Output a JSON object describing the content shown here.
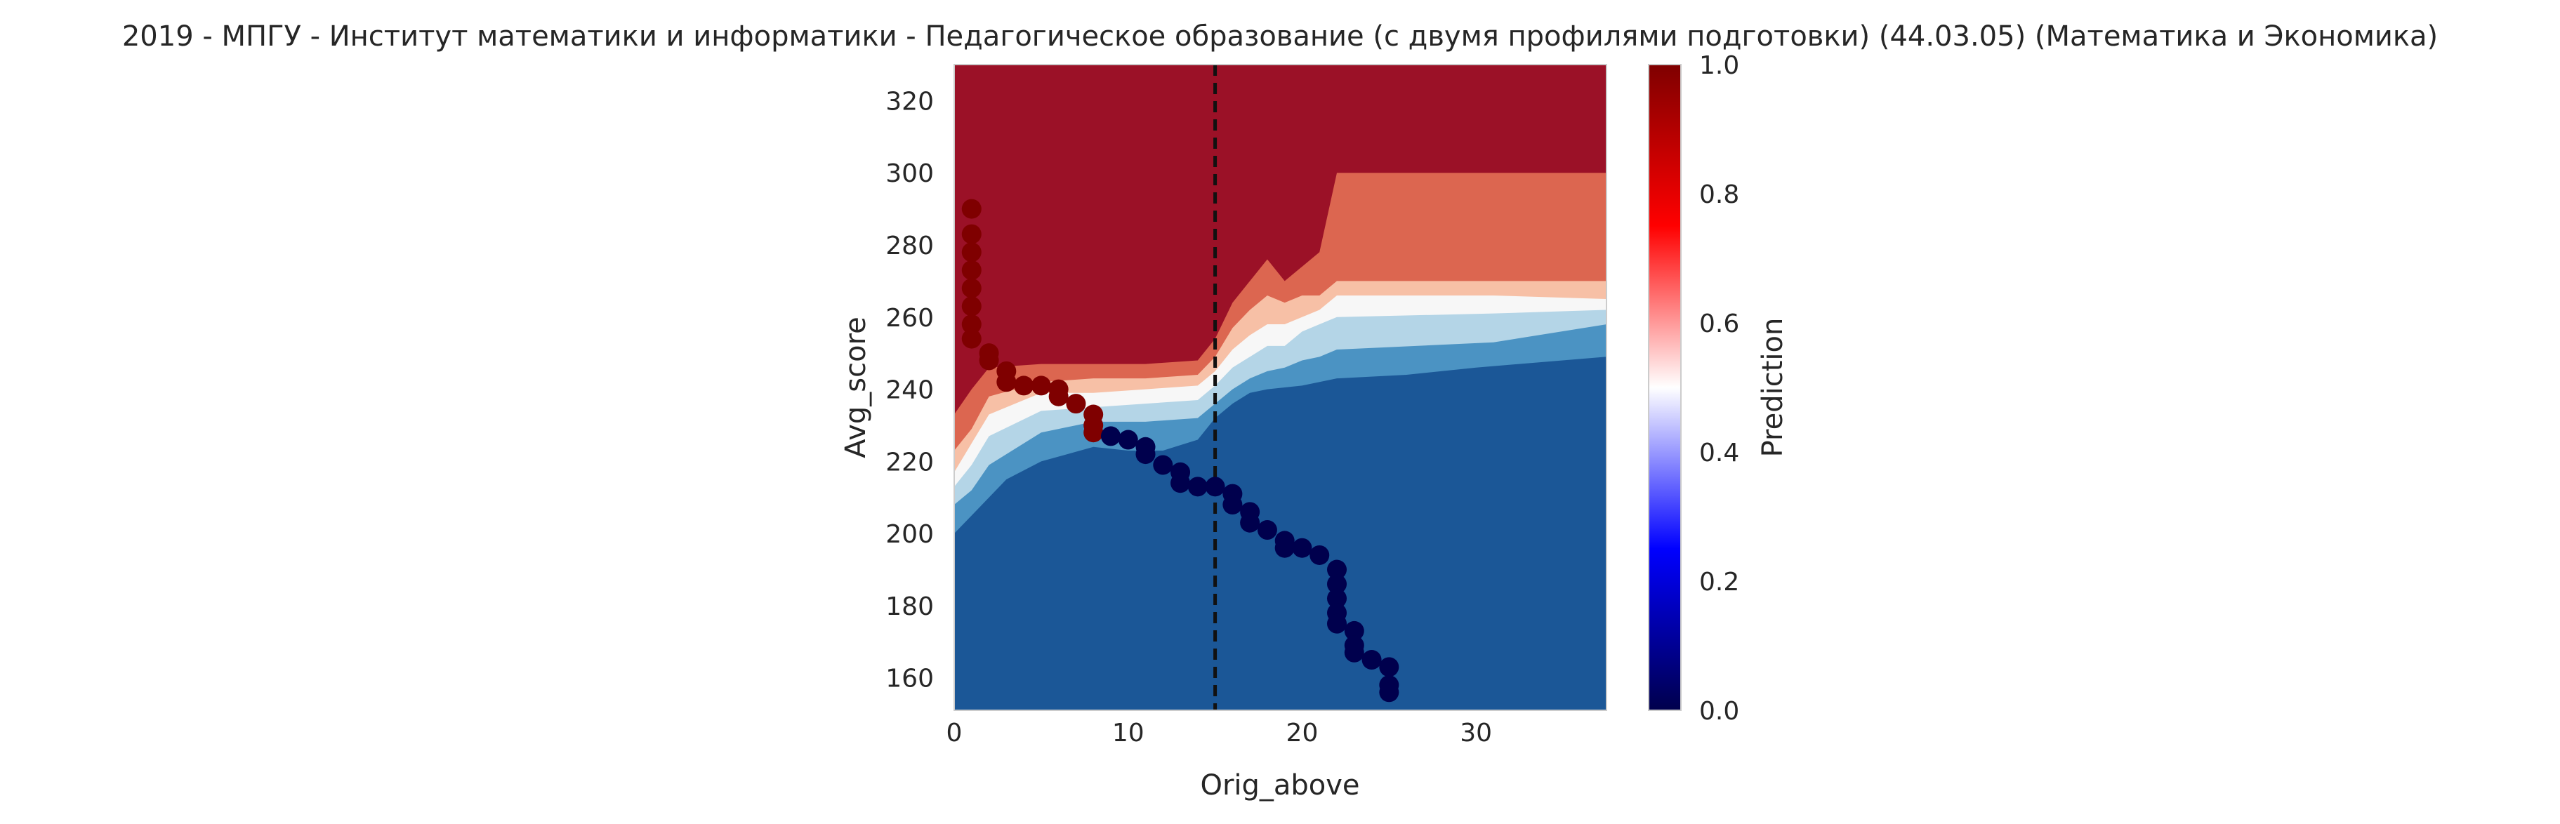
{
  "chart_data": {
    "type": "contour-scatter",
    "title": "2019 - МПГУ - Институт математики и информатики - Педагогическое образование (с двумя профилями подготовки) (44.03.05) (Математика и Экономика)",
    "xlabel": "Orig_above",
    "ylabel": "Avg_score",
    "xlim": [
      0,
      37.5
    ],
    "ylim": [
      151,
      330
    ],
    "xticks": [
      "0",
      "10",
      "20",
      "30"
    ],
    "yticks": [
      "160",
      "180",
      "200",
      "220",
      "240",
      "260",
      "280",
      "300",
      "320"
    ],
    "grid": false,
    "colorbar": {
      "label": "Prediction",
      "range": [
        0.0,
        1.0
      ],
      "ticks": [
        "0.0",
        "0.2",
        "0.4",
        "0.6",
        "0.8",
        "1.0"
      ],
      "colormap": "seismic"
    },
    "vertical_line": {
      "x": 15,
      "style": "dashed",
      "color": "#111111"
    },
    "contour_levels": [
      {
        "level": 0.15,
        "color": "#1b5797"
      },
      {
        "level": 0.3,
        "color": "#4b93c3"
      },
      {
        "level": 0.45,
        "color": "#b4d5e7"
      },
      {
        "level": 0.55,
        "color": "#f7f7f7"
      },
      {
        "level": 0.7,
        "color": "#f7c0a6"
      },
      {
        "level": 0.85,
        "color": "#dc6650"
      },
      {
        "level": 1.0,
        "color": "#9b1127"
      }
    ],
    "class_boundaries": [
      {
        "name": "upper",
        "points": [
          [
            0,
            251
          ],
          [
            2,
            250
          ],
          [
            5,
            249
          ],
          [
            8,
            249
          ],
          [
            11,
            249
          ],
          [
            14,
            250
          ],
          [
            15,
            256
          ],
          [
            16,
            272
          ],
          [
            17,
            284
          ],
          [
            18,
            300
          ],
          [
            19,
            296
          ],
          [
            20,
            302
          ],
          [
            21,
            305
          ],
          [
            22,
            330
          ],
          [
            37.5,
            330
          ]
        ]
      },
      {
        "name": "b85",
        "points": [
          [
            0,
            233
          ],
          [
            1,
            240
          ],
          [
            2,
            246
          ],
          [
            5,
            247
          ],
          [
            8,
            247
          ],
          [
            11,
            247
          ],
          [
            14,
            248
          ],
          [
            15,
            254
          ],
          [
            16,
            264
          ],
          [
            17,
            270
          ],
          [
            18,
            276
          ],
          [
            19,
            270
          ],
          [
            20,
            274
          ],
          [
            21,
            278
          ],
          [
            22,
            300
          ],
          [
            37.5,
            300
          ]
        ]
      },
      {
        "name": "b70",
        "points": [
          [
            0,
            223
          ],
          [
            1,
            229
          ],
          [
            2,
            238
          ],
          [
            5,
            242
          ],
          [
            8,
            243
          ],
          [
            11,
            243
          ],
          [
            14,
            244
          ],
          [
            15,
            249
          ],
          [
            16,
            257
          ],
          [
            17,
            262
          ],
          [
            18,
            266
          ],
          [
            19,
            264
          ],
          [
            20,
            266
          ],
          [
            21,
            266
          ],
          [
            22,
            270
          ],
          [
            37.5,
            270
          ]
        ]
      },
      {
        "name": "b55",
        "points": [
          [
            0,
            217
          ],
          [
            1,
            225
          ],
          [
            2,
            233
          ],
          [
            5,
            239
          ],
          [
            8,
            239
          ],
          [
            11,
            240
          ],
          [
            14,
            241
          ],
          [
            15,
            245
          ],
          [
            16,
            251
          ],
          [
            17,
            255
          ],
          [
            18,
            258
          ],
          [
            19,
            258
          ],
          [
            20,
            260
          ],
          [
            21,
            262
          ],
          [
            22,
            266
          ],
          [
            31,
            266
          ],
          [
            37.5,
            265
          ]
        ]
      },
      {
        "name": "b45",
        "points": [
          [
            0,
            213
          ],
          [
            1,
            219
          ],
          [
            2,
            227
          ],
          [
            5,
            234
          ],
          [
            8,
            235
          ],
          [
            11,
            236
          ],
          [
            14,
            237
          ],
          [
            15,
            241
          ],
          [
            16,
            246
          ],
          [
            17,
            249
          ],
          [
            18,
            252
          ],
          [
            19,
            252
          ],
          [
            20,
            256
          ],
          [
            21,
            258
          ],
          [
            22,
            260
          ],
          [
            31,
            261
          ],
          [
            37.5,
            262
          ]
        ]
      },
      {
        "name": "b30",
        "points": [
          [
            0,
            208
          ],
          [
            1,
            212
          ],
          [
            2,
            219
          ],
          [
            5,
            228
          ],
          [
            8,
            231
          ],
          [
            11,
            231
          ],
          [
            14,
            232
          ],
          [
            15,
            236
          ],
          [
            16,
            240
          ],
          [
            17,
            243
          ],
          [
            18,
            245
          ],
          [
            19,
            246
          ],
          [
            20,
            248
          ],
          [
            21,
            249
          ],
          [
            22,
            251
          ],
          [
            31,
            253
          ],
          [
            37.5,
            258
          ]
        ]
      },
      {
        "name": "b15",
        "points": [
          [
            0,
            200
          ],
          [
            1,
            205
          ],
          [
            2,
            210
          ],
          [
            3,
            215
          ],
          [
            5,
            220
          ],
          [
            8,
            224
          ],
          [
            10,
            223
          ],
          [
            12,
            223
          ],
          [
            14,
            226
          ],
          [
            15,
            232
          ],
          [
            16,
            236
          ],
          [
            17,
            239
          ],
          [
            18,
            240
          ],
          [
            20,
            241
          ],
          [
            22,
            243
          ],
          [
            26,
            244
          ],
          [
            30,
            246
          ],
          [
            37.5,
            249
          ]
        ]
      }
    ],
    "series": [
      {
        "name": "prediction_1",
        "color": "#7f0000",
        "points": [
          [
            1,
            290
          ],
          [
            1,
            283
          ],
          [
            1,
            278
          ],
          [
            1,
            273
          ],
          [
            1,
            268
          ],
          [
            1,
            263
          ],
          [
            1,
            258
          ],
          [
            1,
            254
          ],
          [
            2,
            250
          ],
          [
            2,
            248
          ],
          [
            3,
            245
          ],
          [
            3,
            242
          ],
          [
            4,
            241
          ],
          [
            5,
            241
          ],
          [
            6,
            240
          ],
          [
            6,
            238
          ],
          [
            7,
            236
          ],
          [
            8,
            233
          ],
          [
            8,
            230
          ],
          [
            8,
            228
          ]
        ]
      },
      {
        "name": "prediction_0",
        "color": "#00004d",
        "points": [
          [
            9,
            227
          ],
          [
            10,
            226
          ],
          [
            11,
            224
          ],
          [
            11,
            222
          ],
          [
            12,
            219
          ],
          [
            13,
            217
          ],
          [
            13,
            214
          ],
          [
            14,
            213
          ],
          [
            15,
            213
          ],
          [
            16,
            211
          ],
          [
            16,
            208
          ],
          [
            17,
            206
          ],
          [
            17,
            203
          ],
          [
            18,
            201
          ],
          [
            19,
            198
          ],
          [
            19,
            196
          ],
          [
            20,
            196
          ],
          [
            21,
            194
          ],
          [
            22,
            190
          ],
          [
            22,
            186
          ],
          [
            22,
            182
          ],
          [
            22,
            178
          ],
          [
            22,
            175
          ],
          [
            23,
            173
          ],
          [
            23,
            169
          ],
          [
            23,
            167
          ],
          [
            24,
            165
          ],
          [
            25,
            163
          ],
          [
            25,
            158
          ],
          [
            25,
            156
          ]
        ]
      }
    ]
  }
}
